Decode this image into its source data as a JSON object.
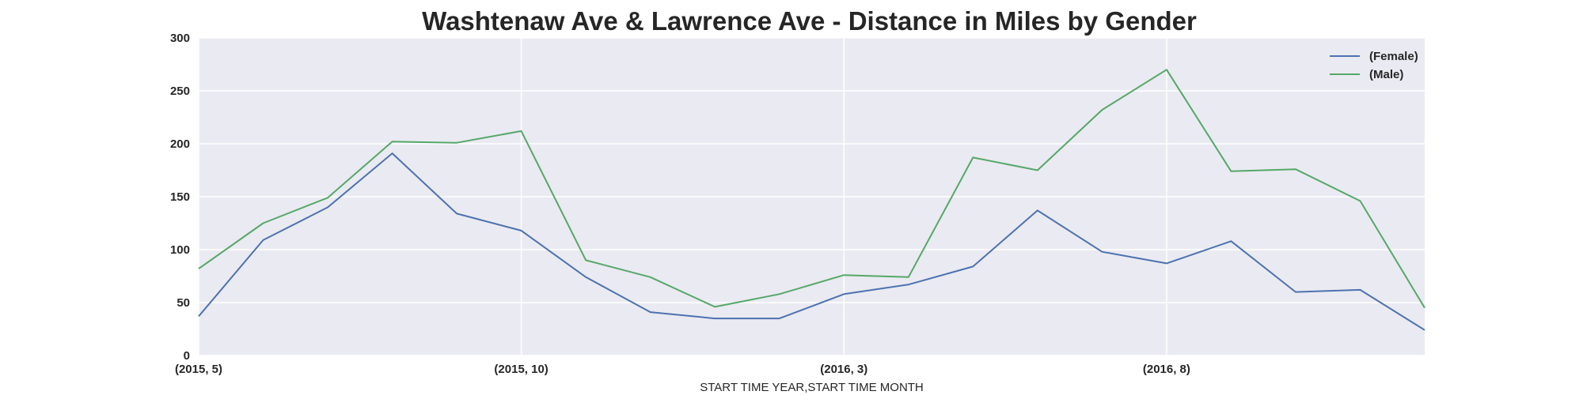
{
  "chart_data": {
    "type": "line",
    "title": "Washtenaw Ave & Lawrence Ave - Distance in Miles by Gender",
    "xlabel": "START TIME YEAR,START TIME MONTH",
    "ylabel": "",
    "ylim": [
      0,
      300
    ],
    "yticks": [
      0,
      50,
      100,
      150,
      200,
      250,
      300
    ],
    "x": [
      "(2015, 5)",
      "(2015, 6)",
      "(2015, 7)",
      "(2015, 8)",
      "(2015, 9)",
      "(2015, 10)",
      "(2015, 11)",
      "(2015, 12)",
      "(2016, 1)",
      "(2016, 2)",
      "(2016, 3)",
      "(2016, 4)",
      "(2016, 5)",
      "(2016, 6)",
      "(2016, 7)",
      "(2016, 8)",
      "(2016, 9)",
      "(2016, 10)",
      "(2016, 11)",
      "(2016, 12)"
    ],
    "xtick_labels": [
      "(2015, 5)",
      "(2015, 10)",
      "(2016, 3)",
      "(2016, 8)"
    ],
    "grid": true,
    "legend_position": "top-right",
    "series": [
      {
        "name": "(Female)",
        "color": "#4c72b0",
        "values": [
          37,
          109,
          140,
          191,
          134,
          118,
          74,
          41,
          35,
          35,
          58,
          67,
          84,
          137,
          98,
          87,
          108,
          60,
          62,
          24
        ]
      },
      {
        "name": "(Male)",
        "color": "#55a868",
        "values": [
          82,
          125,
          149,
          202,
          201,
          212,
          90,
          74,
          46,
          58,
          76,
          74,
          187,
          175,
          232,
          270,
          174,
          176,
          146,
          45
        ]
      }
    ]
  }
}
